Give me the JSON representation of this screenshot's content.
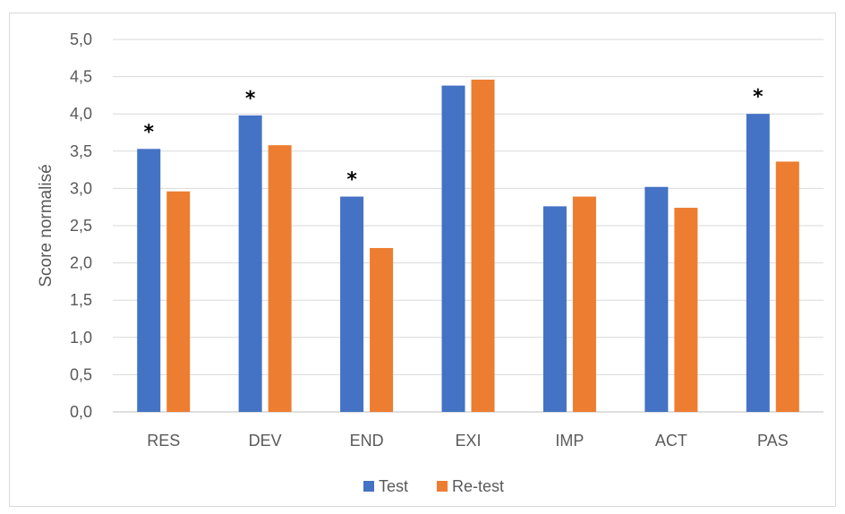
{
  "chart_data": {
    "type": "bar",
    "categories": [
      "RES",
      "DEV",
      "END",
      "EXI",
      "IMP",
      "ACT",
      "PAS"
    ],
    "series": [
      {
        "name": "Test",
        "color": "#4472C4",
        "values": [
          3.53,
          3.98,
          2.89,
          4.38,
          2.76,
          3.02,
          4.0
        ]
      },
      {
        "name": "Re-test",
        "color": "#ED7D31",
        "values": [
          2.96,
          3.58,
          2.2,
          4.46,
          2.89,
          2.74,
          3.36
        ]
      }
    ],
    "significance_markers": [
      {
        "category": "RES",
        "text": "*"
      },
      {
        "category": "DEV",
        "text": "*"
      },
      {
        "category": "END",
        "text": "*"
      },
      {
        "category": "PAS",
        "text": "*"
      }
    ],
    "ylabel": "Score normalisé",
    "ylim": [
      0,
      5
    ],
    "yticks": [
      "0,0",
      "0,5",
      "1,0",
      "1,5",
      "2,0",
      "2,5",
      "3,0",
      "3,5",
      "4,0",
      "4,5",
      "5,0"
    ],
    "grid": true,
    "legend_position": "bottom"
  }
}
